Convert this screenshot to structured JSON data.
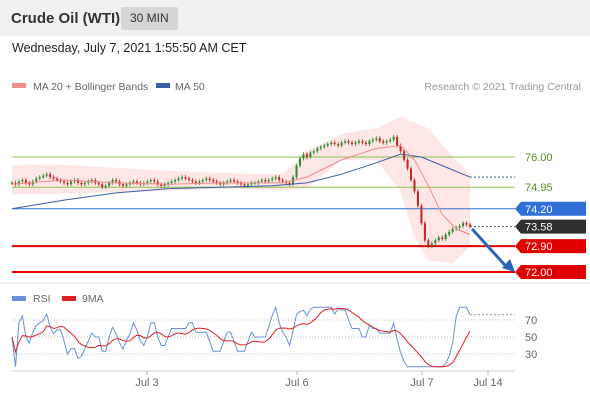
{
  "header": {
    "title": "Crude Oil (WTI)",
    "timeframe": "30 MIN"
  },
  "date_text": "Wednesday, July 7, 2021 1:55:50 AM CET",
  "legend": {
    "ma20": {
      "label": "MA 20 + Bollinger Bands",
      "color": "#f28b8b"
    },
    "ma50": {
      "label": "MA 50",
      "color": "#3a5fa6"
    },
    "credit": "Research © 2021 Trading Central"
  },
  "rsi_legend": {
    "rsi": {
      "label": "RSI",
      "color": "#6a8fd8"
    },
    "ma": {
      "label": "9MA",
      "color": "#e02020"
    }
  },
  "colors": {
    "candle_up": "#2e8b2e",
    "candle_down": "#c62828",
    "support": "#e00000",
    "resistance": "#8bc34a",
    "pivot": "#2f6fd6",
    "last": "#2f2f2f",
    "arrow": "#2c64b8",
    "band": "#fde3e3"
  },
  "chart_data": {
    "type": "line",
    "price": {
      "ylim": [
        71.9,
        76.5
      ]
    },
    "levels": [
      {
        "value": 76.0,
        "label": "76.00",
        "kind": "resistance"
      },
      {
        "value": 74.95,
        "label": "74.95",
        "kind": "resistance"
      },
      {
        "value": 74.2,
        "label": "74.20",
        "kind": "pivot"
      },
      {
        "value": 73.58,
        "label": "73.58",
        "kind": "last"
      },
      {
        "value": 72.9,
        "label": "72.90",
        "kind": "support"
      },
      {
        "value": 72.0,
        "label": "72.00",
        "kind": "support"
      }
    ],
    "x_ticks": [
      "Jul 3",
      "Jul 6",
      "Jul 7",
      "Jul 14"
    ],
    "close": [
      75.1,
      75.05,
      75.15,
      75.2,
      75.1,
      75.05,
      75.15,
      75.25,
      75.3,
      75.35,
      75.4,
      75.3,
      75.25,
      75.2,
      75.15,
      75.1,
      75.05,
      75.15,
      75.2,
      75.1,
      75.05,
      75.1,
      75.15,
      75.2,
      75.1,
      75.05,
      74.95,
      75.0,
      75.1,
      75.2,
      75.15,
      75.05,
      75.0,
      75.05,
      75.1,
      75.15,
      75.1,
      75.05,
      75.1,
      75.15,
      75.2,
      75.15,
      75.05,
      75.0,
      75.05,
      75.1,
      75.15,
      75.2,
      75.25,
      75.3,
      75.25,
      75.2,
      75.15,
      75.1,
      75.15,
      75.2,
      75.25,
      75.2,
      75.15,
      75.1,
      75.05,
      75.1,
      75.15,
      75.2,
      75.15,
      75.1,
      75.05,
      75.0,
      75.05,
      75.1,
      75.1,
      75.15,
      75.2,
      75.15,
      75.2,
      75.25,
      75.3,
      75.2,
      75.15,
      75.1,
      75.05,
      75.3,
      75.7,
      75.95,
      76.1,
      76.0,
      76.15,
      76.2,
      76.3,
      76.35,
      76.4,
      76.45,
      76.5,
      76.45,
      76.4,
      76.5,
      76.55,
      76.5,
      76.45,
      76.5,
      76.55,
      76.5,
      76.45,
      76.55,
      76.6,
      76.65,
      76.55,
      76.5,
      76.55,
      76.6,
      76.7,
      76.4,
      76.2,
      75.9,
      75.6,
      75.2,
      74.8,
      74.3,
      73.7,
      73.1,
      72.9,
      73.0,
      73.1,
      73.2,
      73.15,
      73.3,
      73.4,
      73.5,
      73.55,
      73.6,
      73.7,
      73.65,
      73.58
    ],
    "ma50": [
      [
        0,
        74.2
      ],
      [
        15,
        74.5
      ],
      [
        30,
        74.75
      ],
      [
        45,
        74.9
      ],
      [
        60,
        74.95
      ],
      [
        75,
        75.0
      ],
      [
        85,
        75.1
      ],
      [
        95,
        75.4
      ],
      [
        105,
        75.8
      ],
      [
        112,
        76.1
      ],
      [
        118,
        76.0
      ],
      [
        126,
        75.6
      ],
      [
        132,
        75.3
      ]
    ],
    "band_upper": [
      [
        0,
        75.7
      ],
      [
        10,
        75.75
      ],
      [
        20,
        75.7
      ],
      [
        40,
        75.55
      ],
      [
        60,
        75.45
      ],
      [
        78,
        75.4
      ],
      [
        85,
        76.2
      ],
      [
        95,
        76.8
      ],
      [
        105,
        77.0
      ],
      [
        112,
        77.4
      ],
      [
        120,
        77.0
      ],
      [
        127,
        76.0
      ],
      [
        132,
        75.4
      ]
    ],
    "band_lower": [
      [
        132,
        72.9
      ],
      [
        127,
        72.3
      ],
      [
        120,
        72.4
      ],
      [
        116,
        73.2
      ],
      [
        112,
        74.8
      ],
      [
        105,
        75.9
      ],
      [
        95,
        75.9
      ],
      [
        85,
        74.9
      ],
      [
        78,
        74.85
      ],
      [
        60,
        74.9
      ],
      [
        40,
        74.8
      ],
      [
        20,
        74.75
      ],
      [
        10,
        74.7
      ],
      [
        0,
        74.7
      ]
    ],
    "ma20": [
      [
        0,
        75.05
      ],
      [
        15,
        75.2
      ],
      [
        30,
        75.1
      ],
      [
        45,
        75.05
      ],
      [
        60,
        75.1
      ],
      [
        78,
        75.1
      ],
      [
        85,
        75.3
      ],
      [
        95,
        75.9
      ],
      [
        105,
        76.3
      ],
      [
        112,
        76.4
      ],
      [
        116,
        75.9
      ],
      [
        120,
        75.0
      ],
      [
        124,
        74.0
      ],
      [
        128,
        73.5
      ],
      [
        132,
        73.3
      ]
    ],
    "rsi": {
      "ylim": [
        0,
        100
      ],
      "levels": [
        70,
        50,
        30
      ],
      "level_labels": [
        "70",
        "50",
        "30"
      ]
    }
  }
}
